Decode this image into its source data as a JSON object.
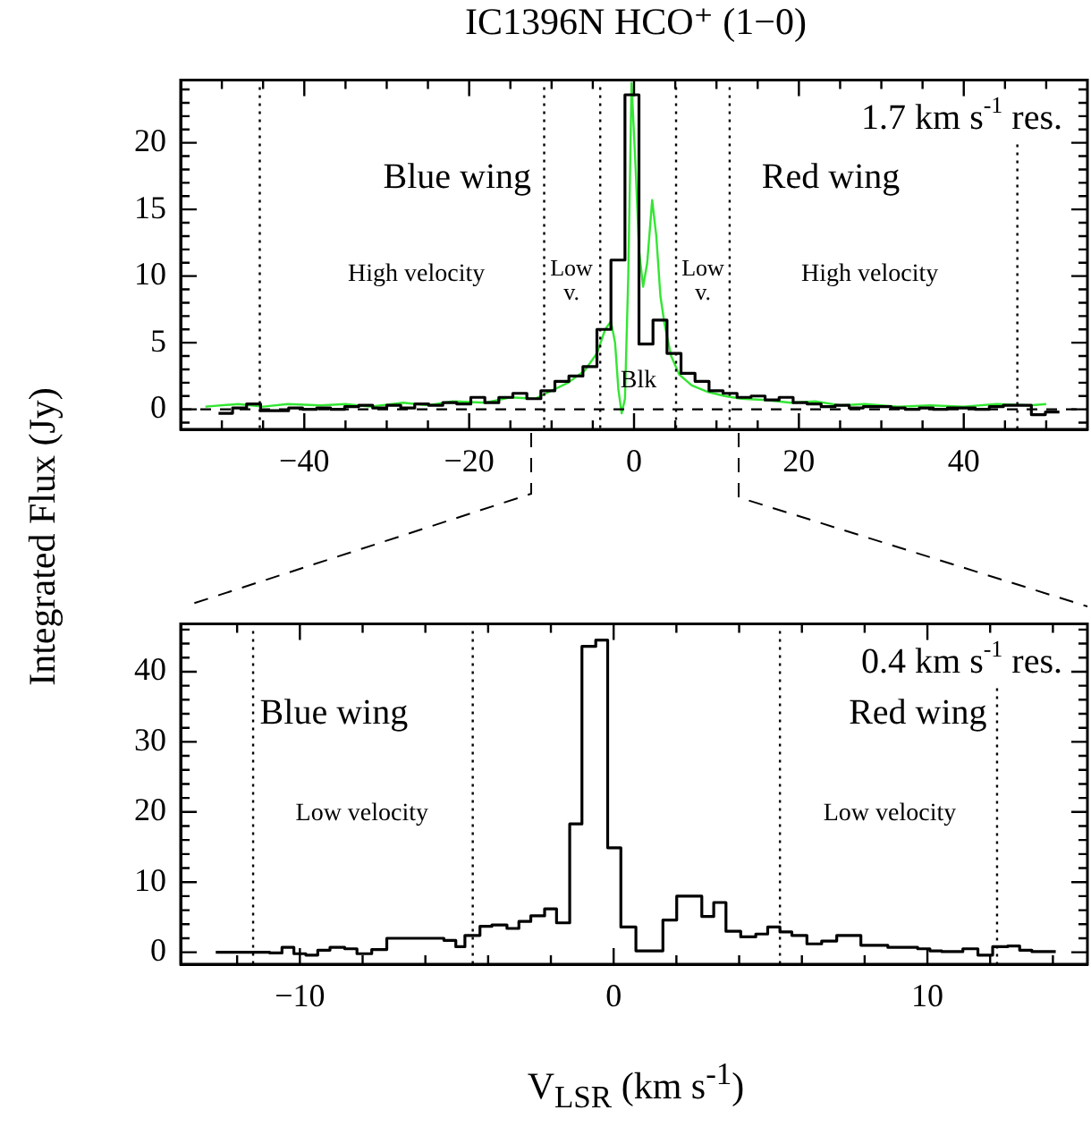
{
  "chart_data": [
    {
      "type": "step",
      "title": "IC1396N HCO⁺ (1−0)",
      "ylabel": "Integrated Flux (Jy)",
      "xlim": [
        -55,
        55
      ],
      "ylim": [
        -1.5,
        24.7
      ],
      "grid": false,
      "legend": false,
      "xticks": [
        {
          "value": -50,
          "label": null
        },
        {
          "value": -45,
          "label": null
        },
        -40,
        {
          "value": -35,
          "label": null
        },
        {
          "value": -30,
          "label": null
        },
        {
          "value": -25,
          "label": null
        },
        -20,
        {
          "value": -15,
          "label": null
        },
        {
          "value": -10,
          "label": null
        },
        {
          "value": -5,
          "label": null
        },
        0,
        {
          "value": 5,
          "label": null
        },
        {
          "value": 10,
          "label": null
        },
        {
          "value": 15,
          "label": null
        },
        20,
        {
          "value": 25,
          "label": null
        },
        {
          "value": 30,
          "label": null
        },
        {
          "value": 35,
          "label": null
        },
        40,
        {
          "value": 45,
          "label": null
        },
        {
          "value": 50,
          "label": null
        }
      ],
      "yticks": [
        {
          "value": -1,
          "label": null
        },
        0,
        {
          "value": 1,
          "label": null
        },
        {
          "value": 2,
          "label": null
        },
        {
          "value": 3,
          "label": null
        },
        {
          "value": 4,
          "label": null
        },
        5,
        {
          "value": 6,
          "label": null
        },
        {
          "value": 7,
          "label": null
        },
        {
          "value": 8,
          "label": null
        },
        {
          "value": 9,
          "label": null
        },
        10,
        {
          "value": 11,
          "label": null
        },
        {
          "value": 12,
          "label": null
        },
        {
          "value": 13,
          "label": null
        },
        {
          "value": 14,
          "label": null
        },
        15,
        {
          "value": 16,
          "label": null
        },
        {
          "value": 17,
          "label": null
        },
        {
          "value": 18,
          "label": null
        },
        {
          "value": 19,
          "label": null
        },
        20,
        {
          "value": 21,
          "label": null
        },
        {
          "value": 22,
          "label": null
        },
        {
          "value": 23,
          "label": null
        },
        {
          "value": 24,
          "label": null
        }
      ],
      "series": [
        {
          "type": "step",
          "color": "#000000",
          "x": [
            -50.4,
            -48.7,
            -47.0,
            -45.3,
            -43.6,
            -41.9,
            -40.2,
            -38.5,
            -36.8,
            -35.1,
            -33.4,
            -31.7,
            -30.0,
            -28.3,
            -26.6,
            -24.9,
            -23.2,
            -21.5,
            -19.8,
            -18.1,
            -16.4,
            -14.7,
            -13.0,
            -11.3,
            -9.6,
            -7.9,
            -6.2,
            -4.5,
            -2.8,
            -1.1,
            0.6,
            2.3,
            4.0,
            5.7,
            7.4,
            9.1,
            10.8,
            12.5,
            14.2,
            15.9,
            17.6,
            19.3,
            21.0,
            22.7,
            24.4,
            26.1,
            27.8,
            29.5,
            31.2,
            32.9,
            34.6,
            36.3,
            38.0,
            39.7,
            41.4,
            43.1,
            44.8,
            46.5,
            48.2,
            49.9,
            51.6
          ],
          "values": [
            -0.3,
            0.1,
            0.4,
            -0.1,
            -0.1,
            0.1,
            0.0,
            0.1,
            0.0,
            0.2,
            0.3,
            0.1,
            0.3,
            0.1,
            0.4,
            0.3,
            0.5,
            0.4,
            0.9,
            0.5,
            0.9,
            1.2,
            0.8,
            1.4,
            2.1,
            2.5,
            3.2,
            6.0,
            11.2,
            23.6,
            4.9,
            6.7,
            4.2,
            2.7,
            2.1,
            1.4,
            1.2,
            0.9,
            1.0,
            0.7,
            0.9,
            0.5,
            0.4,
            0.2,
            0.3,
            0.1,
            0.2,
            0.2,
            0.1,
            0.0,
            0.1,
            0.0,
            0.1,
            0.1,
            0.0,
            0.2,
            0.3,
            0.3,
            -0.4,
            -0.2,
            -0.2
          ]
        },
        {
          "type": "line",
          "color": "#33e633",
          "x": [
            -52,
            -48,
            -45,
            -42,
            -38,
            -35,
            -32,
            -28,
            -25,
            -22,
            -18,
            -15,
            -12,
            -10,
            -8,
            -6,
            -4.5,
            -3.5,
            -2.8,
            -2.3,
            -1.9,
            -1.5,
            -1.1,
            -0.7,
            -0.3,
            0.2,
            0.6,
            1.1,
            1.6,
            2.2,
            2.7,
            3.2,
            3.7,
            4.5,
            5.5,
            7,
            9,
            11,
            13,
            16,
            19,
            22,
            25,
            28,
            32,
            36,
            40,
            44,
            48,
            50
          ],
          "values": [
            0.2,
            0.4,
            0.2,
            0.4,
            0.3,
            0.4,
            0.2,
            0.5,
            0.3,
            0.6,
            0.5,
            0.9,
            0.8,
            1.4,
            2.0,
            2.9,
            4.2,
            6.0,
            6.6,
            5.0,
            1.5,
            -0.3,
            0.8,
            10,
            24.5,
            18,
            12,
            9.2,
            11,
            15.7,
            13,
            8.5,
            6.4,
            4.0,
            2.6,
            1.8,
            1.3,
            1.0,
            0.8,
            0.7,
            0.5,
            0.6,
            0.3,
            0.4,
            0.2,
            0.3,
            0.2,
            0.4,
            0.3,
            0.4
          ]
        }
      ],
      "ref_lines": [
        {
          "axis": "x",
          "value": -45.4,
          "line_style": "dotted",
          "color": "#000000"
        },
        {
          "axis": "x",
          "value": -10.9,
          "line_style": "dotted",
          "color": "#000000"
        },
        {
          "axis": "x",
          "value": -4.1,
          "line_style": "dotted",
          "color": "#000000"
        },
        {
          "axis": "x",
          "value": 5.1,
          "line_style": "dotted",
          "color": "#000000"
        },
        {
          "axis": "x",
          "value": 11.6,
          "line_style": "dotted",
          "color": "#000000"
        },
        {
          "axis": "x",
          "value": 46.5,
          "line_style": "dotted",
          "color": "#000000"
        },
        {
          "axis": "y",
          "value": 0,
          "line_style": "dashed",
          "color": "#000000"
        }
      ],
      "annotations": [
        "Blue wing",
        "Red wing",
        "High velocity",
        "Low\nv.",
        "Low\nv.",
        "High velocity",
        "Blk",
        "1.7 km s$^{-1}$ res."
      ]
    },
    {
      "type": "step",
      "xlabel": "V$_{LSR}$ (km s$^{-1}$)",
      "xlim": [
        -13.8,
        15.1
      ],
      "ylim": [
        -1.7,
        46.8
      ],
      "grid": false,
      "legend": false,
      "xticks": [
        {
          "value": -12,
          "label": null
        },
        -10,
        {
          "value": -8,
          "label": null
        },
        {
          "value": -6,
          "label": null
        },
        {
          "value": -4,
          "label": null
        },
        {
          "value": -2,
          "label": null
        },
        0,
        {
          "value": 2,
          "label": null
        },
        {
          "value": 4,
          "label": null
        },
        {
          "value": 6,
          "label": null
        },
        {
          "value": 8,
          "label": null
        },
        10,
        {
          "value": 12,
          "label": null
        },
        {
          "value": 14,
          "label": null
        }
      ],
      "yticks": [
        0,
        {
          "value": 2,
          "label": null
        },
        {
          "value": 4,
          "label": null
        },
        {
          "value": 6,
          "label": null
        },
        {
          "value": 8,
          "label": null
        },
        10,
        {
          "value": 12,
          "label": null
        },
        {
          "value": 14,
          "label": null
        },
        {
          "value": 16,
          "label": null
        },
        {
          "value": 18,
          "label": null
        },
        20,
        {
          "value": 22,
          "label": null
        },
        {
          "value": 24,
          "label": null
        },
        {
          "value": 26,
          "label": null
        },
        {
          "value": 28,
          "label": null
        },
        30,
        {
          "value": 32,
          "label": null
        },
        {
          "value": 34,
          "label": null
        },
        {
          "value": 36,
          "label": null
        },
        {
          "value": 38,
          "label": null
        },
        40,
        {
          "value": 42,
          "label": null
        },
        {
          "value": 44,
          "label": null
        },
        {
          "value": 46,
          "label": null
        }
      ],
      "series": [
        {
          "type": "step",
          "color": "#000000",
          "x": [
            -12.68,
            -11.43,
            -10.96,
            -10.57,
            -10.19,
            -9.81,
            -9.43,
            -9.04,
            -8.57,
            -8.18,
            -7.71,
            -7.23,
            -5.41,
            -5.03,
            -4.74,
            -4.26,
            -3.88,
            -3.4,
            -3.02,
            -2.64,
            -2.2,
            -1.82,
            -1.4,
            -1.01,
            -0.57,
            -0.19,
            0.23,
            0.71,
            1.57,
            2.01,
            2.81,
            3.19,
            3.58,
            4.05,
            4.53,
            4.91,
            5.3,
            5.68,
            6.16,
            6.63,
            7.11,
            7.88,
            8.74,
            9.69,
            10.08,
            10.46,
            11.13,
            11.61,
            12.08,
            12.56,
            12.94,
            13.33,
            14.09
          ],
          "values": [
            0.0,
            0.0,
            -0.1,
            0.7,
            -0.2,
            -0.4,
            0.3,
            0.7,
            0.5,
            -0.2,
            0.4,
            2.0,
            1.7,
            0.8,
            2.4,
            3.7,
            3.9,
            3.4,
            4.4,
            5.2,
            6.2,
            4.2,
            18.3,
            43.6,
            44.5,
            14.9,
            3.6,
            0.2,
            4.6,
            8.0,
            5.1,
            7.1,
            3.0,
            2.2,
            2.6,
            3.6,
            2.9,
            2.4,
            1.2,
            1.6,
            2.4,
            1.0,
            0.7,
            0.5,
            0.2,
            0.1,
            0.5,
            -0.4,
            0.8,
            0.9,
            0.3,
            0.1,
            0.1
          ]
        }
      ],
      "ref_lines": [
        {
          "axis": "x",
          "value": -11.49,
          "line_style": "dotted",
          "color": "#000000"
        },
        {
          "axis": "x",
          "value": -4.49,
          "line_style": "dotted",
          "color": "#000000"
        },
        {
          "axis": "x",
          "value": 5.3,
          "line_style": "dotted",
          "color": "#000000"
        },
        {
          "axis": "x",
          "value": 12.22,
          "line_style": "dotted",
          "color": "#000000"
        }
      ],
      "annotations": [
        "Blue wing",
        "Red wing",
        "Low velocity",
        "Low velocity",
        "0.4 km s$^{-1}$ res."
      ]
    }
  ]
}
